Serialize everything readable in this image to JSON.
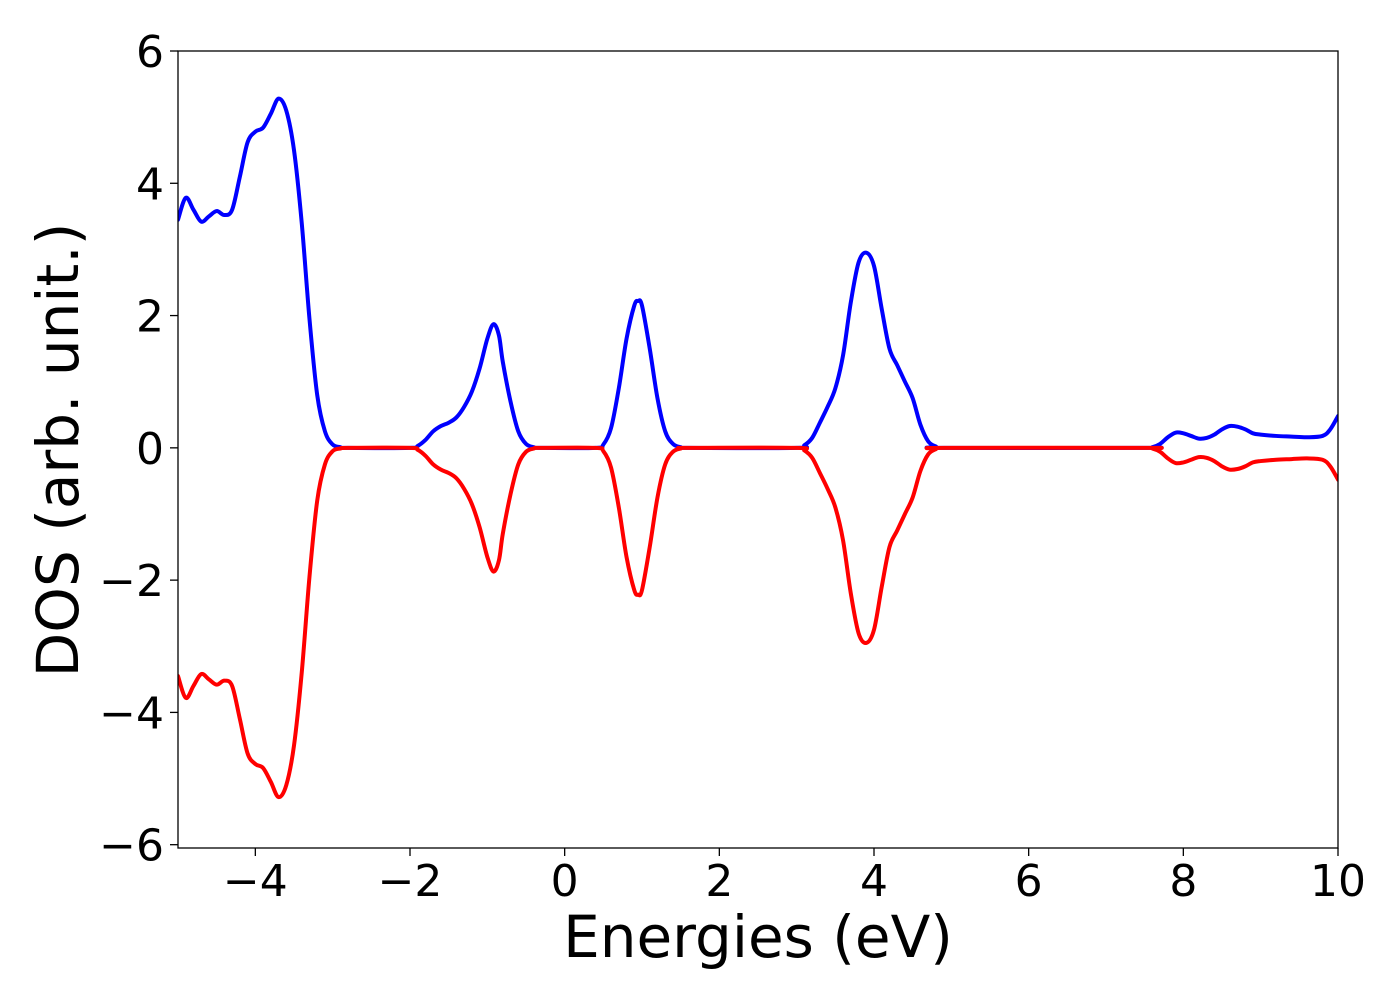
{
  "chart_data": {
    "type": "line",
    "title": "",
    "xlabel": "Energies (eV)",
    "ylabel": "DOS (arb. unit.)",
    "xlim": [
      -5,
      10
    ],
    "ylim": [
      -6.05,
      6.0
    ],
    "xticks": [
      -4,
      -2,
      0,
      2,
      4,
      6,
      8,
      10
    ],
    "xtick_labels": [
      "−4",
      "−2",
      "0",
      "2",
      "4",
      "6",
      "8",
      "10"
    ],
    "yticks": [
      -6,
      -4,
      -2,
      0,
      2,
      4,
      6
    ],
    "ytick_labels": [
      "−6",
      "−4",
      "−2",
      "0",
      "2",
      "4",
      "6"
    ],
    "grid": false,
    "legend": "none",
    "series": [
      {
        "color": "#0000ff",
        "points": [
          [
            -5.0,
            3.45
          ],
          [
            -4.9,
            3.78
          ],
          [
            -4.8,
            3.6
          ],
          [
            -4.7,
            3.42
          ],
          [
            -4.6,
            3.5
          ],
          [
            -4.5,
            3.58
          ],
          [
            -4.4,
            3.52
          ],
          [
            -4.3,
            3.6
          ],
          [
            -4.2,
            4.1
          ],
          [
            -4.1,
            4.62
          ],
          [
            -4.0,
            4.78
          ],
          [
            -3.9,
            4.84
          ],
          [
            -3.8,
            5.05
          ],
          [
            -3.7,
            5.28
          ],
          [
            -3.6,
            5.1
          ],
          [
            -3.5,
            4.5
          ],
          [
            -3.4,
            3.4
          ],
          [
            -3.3,
            1.95
          ],
          [
            -3.2,
            0.8
          ],
          [
            -3.1,
            0.25
          ],
          [
            -3.0,
            0.05
          ],
          [
            -2.9,
            0.01
          ],
          [
            -2.8,
            0.0
          ],
          [
            -2.0,
            0.0
          ],
          [
            -1.9,
            0.03
          ],
          [
            -1.8,
            0.12
          ],
          [
            -1.7,
            0.25
          ],
          [
            -1.6,
            0.33
          ],
          [
            -1.5,
            0.38
          ],
          [
            -1.4,
            0.46
          ],
          [
            -1.3,
            0.62
          ],
          [
            -1.2,
            0.85
          ],
          [
            -1.1,
            1.2
          ],
          [
            -1.0,
            1.65
          ],
          [
            -0.92,
            1.87
          ],
          [
            -0.85,
            1.7
          ],
          [
            -0.8,
            1.3
          ],
          [
            -0.7,
            0.7
          ],
          [
            -0.6,
            0.25
          ],
          [
            -0.5,
            0.06
          ],
          [
            -0.4,
            0.01
          ],
          [
            -0.3,
            0.0
          ],
          [
            0.4,
            0.0
          ],
          [
            0.5,
            0.05
          ],
          [
            0.6,
            0.3
          ],
          [
            0.7,
            0.9
          ],
          [
            0.8,
            1.65
          ],
          [
            0.9,
            2.15
          ],
          [
            0.95,
            2.22
          ],
          [
            1.0,
            2.15
          ],
          [
            1.1,
            1.5
          ],
          [
            1.2,
            0.75
          ],
          [
            1.3,
            0.25
          ],
          [
            1.4,
            0.06
          ],
          [
            1.5,
            0.01
          ],
          [
            1.6,
            0.0
          ],
          [
            3.0,
            0.0
          ],
          [
            3.1,
            0.04
          ],
          [
            3.2,
            0.15
          ],
          [
            3.3,
            0.38
          ],
          [
            3.4,
            0.62
          ],
          [
            3.5,
            0.9
          ],
          [
            3.6,
            1.4
          ],
          [
            3.7,
            2.2
          ],
          [
            3.8,
            2.8
          ],
          [
            3.9,
            2.95
          ],
          [
            4.0,
            2.75
          ],
          [
            4.1,
            2.1
          ],
          [
            4.2,
            1.5
          ],
          [
            4.3,
            1.25
          ],
          [
            4.4,
            1.0
          ],
          [
            4.5,
            0.75
          ],
          [
            4.6,
            0.35
          ],
          [
            4.7,
            0.1
          ],
          [
            4.8,
            0.02
          ],
          [
            4.9,
            0.0
          ],
          [
            7.5,
            0.0
          ],
          [
            7.6,
            0.01
          ],
          [
            7.7,
            0.06
          ],
          [
            7.8,
            0.16
          ],
          [
            7.9,
            0.23
          ],
          [
            8.0,
            0.22
          ],
          [
            8.1,
            0.18
          ],
          [
            8.2,
            0.14
          ],
          [
            8.3,
            0.15
          ],
          [
            8.4,
            0.2
          ],
          [
            8.5,
            0.28
          ],
          [
            8.6,
            0.33
          ],
          [
            8.7,
            0.32
          ],
          [
            8.8,
            0.28
          ],
          [
            8.9,
            0.22
          ],
          [
            9.0,
            0.2
          ],
          [
            9.2,
            0.18
          ],
          [
            9.4,
            0.17
          ],
          [
            9.6,
            0.16
          ],
          [
            9.8,
            0.18
          ],
          [
            9.9,
            0.28
          ],
          [
            10.0,
            0.48
          ]
        ]
      },
      {
        "color": "#ff0000",
        "points": [
          [
            -5.0,
            -3.45
          ],
          [
            -4.9,
            -3.78
          ],
          [
            -4.8,
            -3.6
          ],
          [
            -4.7,
            -3.42
          ],
          [
            -4.6,
            -3.5
          ],
          [
            -4.5,
            -3.58
          ],
          [
            -4.4,
            -3.52
          ],
          [
            -4.3,
            -3.6
          ],
          [
            -4.2,
            -4.1
          ],
          [
            -4.1,
            -4.62
          ],
          [
            -4.0,
            -4.78
          ],
          [
            -3.9,
            -4.84
          ],
          [
            -3.8,
            -5.05
          ],
          [
            -3.7,
            -5.28
          ],
          [
            -3.6,
            -5.1
          ],
          [
            -3.5,
            -4.5
          ],
          [
            -3.4,
            -3.4
          ],
          [
            -3.3,
            -1.95
          ],
          [
            -3.2,
            -0.8
          ],
          [
            -3.1,
            -0.25
          ],
          [
            -3.0,
            -0.05
          ],
          [
            -2.9,
            -0.01
          ],
          [
            -2.8,
            0.0
          ],
          [
            -2.0,
            0.0
          ],
          [
            -1.9,
            -0.03
          ],
          [
            -1.8,
            -0.12
          ],
          [
            -1.7,
            -0.25
          ],
          [
            -1.6,
            -0.33
          ],
          [
            -1.5,
            -0.38
          ],
          [
            -1.4,
            -0.46
          ],
          [
            -1.3,
            -0.62
          ],
          [
            -1.2,
            -0.85
          ],
          [
            -1.1,
            -1.2
          ],
          [
            -1.0,
            -1.65
          ],
          [
            -0.92,
            -1.87
          ],
          [
            -0.85,
            -1.7
          ],
          [
            -0.8,
            -1.3
          ],
          [
            -0.7,
            -0.7
          ],
          [
            -0.6,
            -0.25
          ],
          [
            -0.5,
            -0.06
          ],
          [
            -0.4,
            -0.01
          ],
          [
            -0.3,
            0.0
          ],
          [
            0.4,
            0.0
          ],
          [
            0.5,
            -0.05
          ],
          [
            0.6,
            -0.3
          ],
          [
            0.7,
            -0.9
          ],
          [
            0.8,
            -1.65
          ],
          [
            0.9,
            -2.15
          ],
          [
            0.95,
            -2.22
          ],
          [
            1.0,
            -2.15
          ],
          [
            1.1,
            -1.5
          ],
          [
            1.2,
            -0.75
          ],
          [
            1.3,
            -0.25
          ],
          [
            1.4,
            -0.06
          ],
          [
            1.5,
            -0.01
          ],
          [
            1.6,
            0.0
          ],
          [
            3.0,
            0.0
          ],
          [
            3.1,
            -0.04
          ],
          [
            3.2,
            -0.15
          ],
          [
            3.3,
            -0.38
          ],
          [
            3.4,
            -0.62
          ],
          [
            3.5,
            -0.9
          ],
          [
            3.6,
            -1.4
          ],
          [
            3.7,
            -2.2
          ],
          [
            3.8,
            -2.8
          ],
          [
            3.9,
            -2.95
          ],
          [
            4.0,
            -2.75
          ],
          [
            4.1,
            -2.1
          ],
          [
            4.2,
            -1.5
          ],
          [
            4.3,
            -1.25
          ],
          [
            4.4,
            -1.0
          ],
          [
            4.5,
            -0.75
          ],
          [
            4.6,
            -0.35
          ],
          [
            4.7,
            -0.1
          ],
          [
            4.8,
            -0.02
          ],
          [
            4.9,
            0.0
          ],
          [
            7.5,
            0.0
          ],
          [
            7.6,
            -0.01
          ],
          [
            7.7,
            -0.06
          ],
          [
            7.8,
            -0.16
          ],
          [
            7.9,
            -0.23
          ],
          [
            8.0,
            -0.22
          ],
          [
            8.1,
            -0.18
          ],
          [
            8.2,
            -0.14
          ],
          [
            8.3,
            -0.15
          ],
          [
            8.4,
            -0.2
          ],
          [
            8.5,
            -0.28
          ],
          [
            8.6,
            -0.33
          ],
          [
            8.7,
            -0.32
          ],
          [
            8.8,
            -0.28
          ],
          [
            8.9,
            -0.22
          ],
          [
            9.0,
            -0.2
          ],
          [
            9.2,
            -0.18
          ],
          [
            9.4,
            -0.17
          ],
          [
            9.6,
            -0.16
          ],
          [
            9.8,
            -0.18
          ],
          [
            9.9,
            -0.28
          ],
          [
            10.0,
            -0.48
          ]
        ]
      }
    ]
  }
}
